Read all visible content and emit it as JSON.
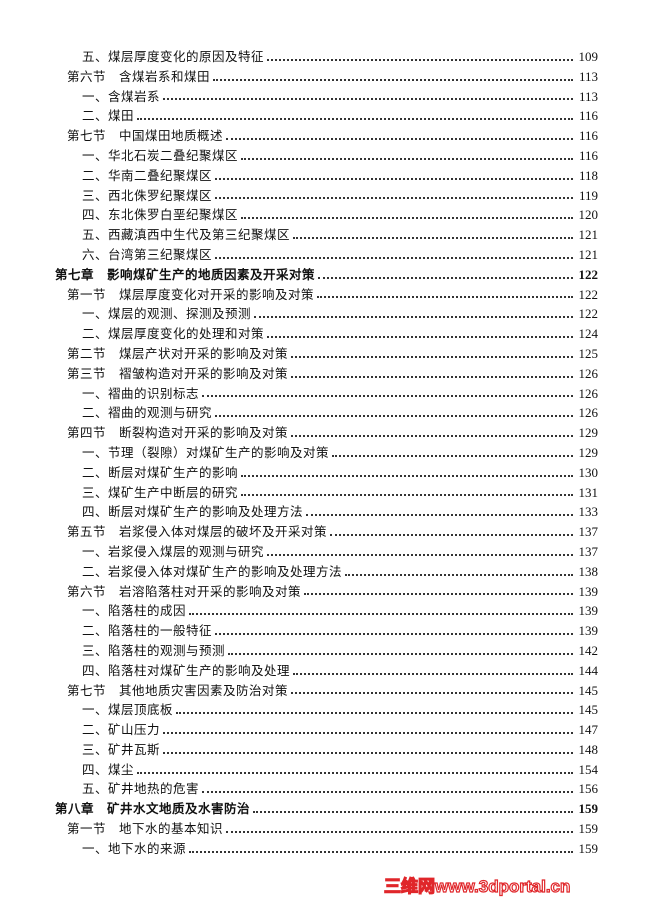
{
  "toc": [
    {
      "level": "item",
      "label": "五、煤层厚度变化的原因及特征",
      "page": "109"
    },
    {
      "level": "section",
      "label": "第六节　含煤岩系和煤田",
      "page": "113"
    },
    {
      "level": "item",
      "label": "一、含煤岩系",
      "page": "113"
    },
    {
      "level": "item",
      "label": "二、煤田",
      "page": "116"
    },
    {
      "level": "section",
      "label": "第七节　中国煤田地质概述",
      "page": "116"
    },
    {
      "level": "item",
      "label": "一、华北石炭二叠纪聚煤区",
      "page": "116"
    },
    {
      "level": "item",
      "label": "二、华南二叠纪聚煤区",
      "page": "118"
    },
    {
      "level": "item",
      "label": "三、西北侏罗纪聚煤区",
      "page": "119"
    },
    {
      "level": "item",
      "label": "四、东北侏罗白垩纪聚煤区",
      "page": "120"
    },
    {
      "level": "item",
      "label": "五、西藏滇西中生代及第三纪聚煤区",
      "page": "121"
    },
    {
      "level": "item",
      "label": "六、台湾第三纪聚煤区",
      "page": "121"
    },
    {
      "level": "chapter",
      "label": "第七章　影响煤矿生产的地质因素及开采对策",
      "page": "122"
    },
    {
      "level": "section",
      "label": "第一节　煤层厚度变化对开采的影响及对策",
      "page": "122"
    },
    {
      "level": "item",
      "label": "一、煤层的观测、探测及预测",
      "page": "122"
    },
    {
      "level": "item",
      "label": "二、煤层厚度变化的处理和对策",
      "page": "124"
    },
    {
      "level": "section",
      "label": "第二节　煤层产状对开采的影响及对策",
      "page": "125"
    },
    {
      "level": "section",
      "label": "第三节　褶皱构造对开采的影响及对策",
      "page": "126"
    },
    {
      "level": "item",
      "label": "一、褶曲的识别标志",
      "page": "126"
    },
    {
      "level": "item",
      "label": "二、褶曲的观测与研究",
      "page": "126"
    },
    {
      "level": "section",
      "label": "第四节　断裂构造对开采的影响及对策",
      "page": "129"
    },
    {
      "level": "item",
      "label": "一、节理（裂隙）对煤矿生产的影响及对策",
      "page": "129"
    },
    {
      "level": "item",
      "label": "二、断层对煤矿生产的影响",
      "page": "130"
    },
    {
      "level": "item",
      "label": "三、煤矿生产中断层的研究",
      "page": "131"
    },
    {
      "level": "item",
      "label": "四、断层对煤矿生产的影响及处理方法",
      "page": "133"
    },
    {
      "level": "section",
      "label": "第五节　岩浆侵入体对煤层的破坏及开采对策",
      "page": "137"
    },
    {
      "level": "item",
      "label": "一、岩浆侵入煤层的观测与研究",
      "page": "137"
    },
    {
      "level": "item",
      "label": "二、岩浆侵入体对煤矿生产的影响及处理方法",
      "page": "138"
    },
    {
      "level": "section",
      "label": "第六节　岩溶陷落柱对开采的影响及对策",
      "page": "139"
    },
    {
      "level": "item",
      "label": "一、陷落柱的成因",
      "page": "139"
    },
    {
      "level": "item",
      "label": "二、陷落柱的一般特征",
      "page": "139"
    },
    {
      "level": "item",
      "label": "三、陷落柱的观测与预测",
      "page": "142"
    },
    {
      "level": "item",
      "label": "四、陷落柱对煤矿生产的影响及处理",
      "page": "144"
    },
    {
      "level": "section",
      "label": "第七节　其他地质灾害因素及防治对策",
      "page": "145"
    },
    {
      "level": "item",
      "label": "一、煤层顶底板",
      "page": "145"
    },
    {
      "level": "item",
      "label": "二、矿山压力",
      "page": "147"
    },
    {
      "level": "item",
      "label": "三、矿井瓦斯",
      "page": "148"
    },
    {
      "level": "item",
      "label": "四、煤尘",
      "page": "154"
    },
    {
      "level": "item",
      "label": "五、矿井地热的危害",
      "page": "156"
    },
    {
      "level": "chapter",
      "label": "第八章　矿井水文地质及水害防治",
      "page": "159"
    },
    {
      "level": "section",
      "label": "第一节　地下水的基本知识",
      "page": "159"
    },
    {
      "level": "item",
      "label": "一、地下水的来源",
      "page": "159"
    }
  ],
  "watermark": "三维网www.3dportal.cn",
  "colors": {
    "text": "#111111",
    "watermark": "#e0262a"
  }
}
